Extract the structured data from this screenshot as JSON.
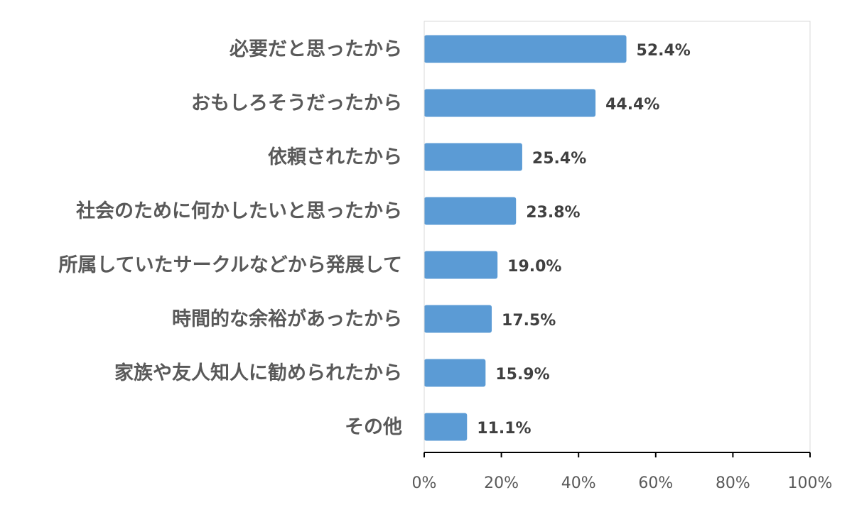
{
  "chart_data": {
    "type": "bar",
    "orientation": "horizontal",
    "categories": [
      "必要だと思ったから",
      "おもしろそうだったから",
      "依頼されたから",
      "社会のために何かしたいと思ったから",
      "所属していたサークルなどから発展して",
      "時間的な余裕があったから",
      "家族や友人知人に勧められたから",
      "その他"
    ],
    "values": [
      52.4,
      44.4,
      25.4,
      23.8,
      19.0,
      17.5,
      15.9,
      11.1
    ],
    "value_labels": [
      "52.4%",
      "44.4%",
      "25.4%",
      "23.8%",
      "19.0%",
      "17.5%",
      "15.9%",
      "11.1%"
    ],
    "xlim": [
      0,
      100
    ],
    "x_ticks": [
      0,
      20,
      40,
      60,
      80,
      100
    ],
    "x_tick_labels": [
      "0%",
      "20%",
      "40%",
      "60%",
      "80%",
      "100%"
    ],
    "grid": false,
    "legend": "none",
    "colors": {
      "bar": "#5b9bd5",
      "axis": "#000000",
      "frame": "#d9d9d9",
      "category_text": "#595959",
      "value_text": "#404040"
    }
  }
}
